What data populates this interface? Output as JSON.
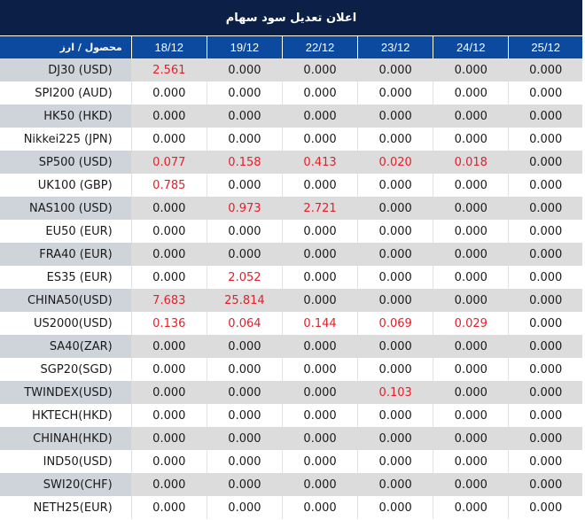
{
  "title": "اعلان تعدیل سود سهام",
  "colors": {
    "title_bg": "#0B1F47",
    "header_bg": "#0B4A9E",
    "row_alt_bg": "#DCDCDC",
    "label_alt_bg": "#CFD3DA",
    "highlight_text": "#E3202B",
    "text": "#1a1a1a"
  },
  "table": {
    "header_label": "محصول / ارز",
    "dates": [
      "18/12",
      "19/12",
      "22/12",
      "23/12",
      "24/12",
      "25/12"
    ],
    "rows": [
      {
        "product": "DJ30 (USD)",
        "values": [
          "2.561",
          "0.000",
          "0.000",
          "0.000",
          "0.000",
          "0.000"
        ]
      },
      {
        "product": "SPI200 (AUD)",
        "values": [
          "0.000",
          "0.000",
          "0.000",
          "0.000",
          "0.000",
          "0.000"
        ]
      },
      {
        "product": "HK50 (HKD)",
        "values": [
          "0.000",
          "0.000",
          "0.000",
          "0.000",
          "0.000",
          "0.000"
        ]
      },
      {
        "product": "Nikkei225 (JPN)",
        "values": [
          "0.000",
          "0.000",
          "0.000",
          "0.000",
          "0.000",
          "0.000"
        ]
      },
      {
        "product": "SP500 (USD)",
        "values": [
          "0.077",
          "0.158",
          "0.413",
          "0.020",
          "0.018",
          "0.000"
        ]
      },
      {
        "product": "UK100 (GBP)",
        "values": [
          "0.785",
          "0.000",
          "0.000",
          "0.000",
          "0.000",
          "0.000"
        ]
      },
      {
        "product": "NAS100 (USD)",
        "values": [
          "0.000",
          "0.973",
          "2.721",
          "0.000",
          "0.000",
          "0.000"
        ]
      },
      {
        "product": "EU50 (EUR)",
        "values": [
          "0.000",
          "0.000",
          "0.000",
          "0.000",
          "0.000",
          "0.000"
        ]
      },
      {
        "product": "FRA40 (EUR)",
        "values": [
          "0.000",
          "0.000",
          "0.000",
          "0.000",
          "0.000",
          "0.000"
        ]
      },
      {
        "product": "ES35 (EUR)",
        "values": [
          "0.000",
          "2.052",
          "0.000",
          "0.000",
          "0.000",
          "0.000"
        ]
      },
      {
        "product": "CHINA50(USD)",
        "values": [
          "7.683",
          "25.814",
          "0.000",
          "0.000",
          "0.000",
          "0.000"
        ]
      },
      {
        "product": "US2000(USD)",
        "values": [
          "0.136",
          "0.064",
          "0.144",
          "0.069",
          "0.029",
          "0.000"
        ]
      },
      {
        "product": "SA40(ZAR)",
        "values": [
          "0.000",
          "0.000",
          "0.000",
          "0.000",
          "0.000",
          "0.000"
        ]
      },
      {
        "product": "SGP20(SGD)",
        "values": [
          "0.000",
          "0.000",
          "0.000",
          "0.000",
          "0.000",
          "0.000"
        ]
      },
      {
        "product": "TWINDEX(USD)",
        "values": [
          "0.000",
          "0.000",
          "0.000",
          "0.103",
          "0.000",
          "0.000"
        ]
      },
      {
        "product": "HKTECH(HKD)",
        "values": [
          "0.000",
          "0.000",
          "0.000",
          "0.000",
          "0.000",
          "0.000"
        ]
      },
      {
        "product": "CHINAH(HKD)",
        "values": [
          "0.000",
          "0.000",
          "0.000",
          "0.000",
          "0.000",
          "0.000"
        ]
      },
      {
        "product": "IND50(USD)",
        "values": [
          "0.000",
          "0.000",
          "0.000",
          "0.000",
          "0.000",
          "0.000"
        ]
      },
      {
        "product": "SWI20(CHF)",
        "values": [
          "0.000",
          "0.000",
          "0.000",
          "0.000",
          "0.000",
          "0.000"
        ]
      },
      {
        "product": "NETH25(EUR)",
        "values": [
          "0.000",
          "0.000",
          "0.000",
          "0.000",
          "0.000",
          "0.000"
        ]
      }
    ]
  }
}
